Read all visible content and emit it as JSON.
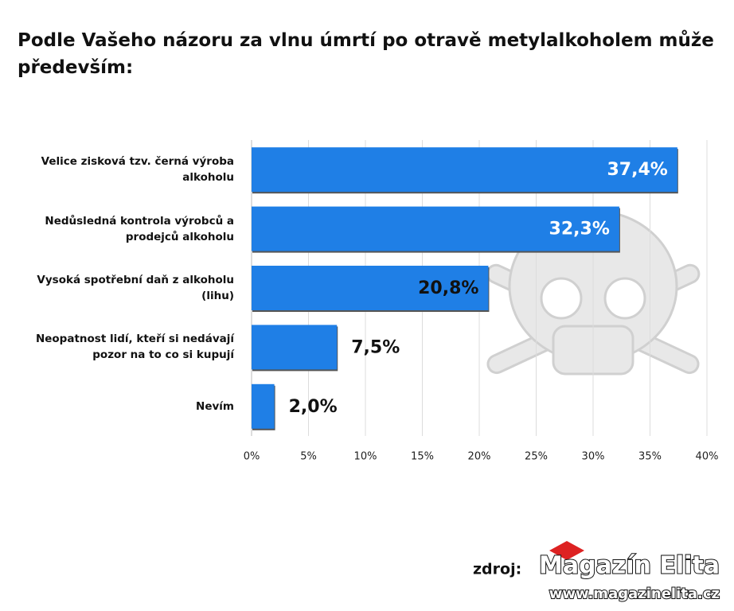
{
  "chart_data": {
    "type": "hbar",
    "title": "Podle Vašeho názoru za vlnu úmrtí po otravě metylalkoholem může především:",
    "categories": [
      "Velice zisková tzv. černá výroba alkoholu",
      "Nedůsledná kontrola výrobců a prodejců alkoholu",
      "Vysoká spotřební daň z alkoholu (lihu)",
      "Neopatnost lidí, kteří si nedávají pozor na to co si kupují",
      "Nevím"
    ],
    "values": [
      37.4,
      32.3,
      20.8,
      7.5,
      2.0
    ],
    "value_labels": [
      "37,4%",
      "32,3%",
      "20,8%",
      "7,5%",
      "2,0%"
    ],
    "color": "#1f7fe6",
    "xlim": [
      0,
      40
    ],
    "xticks": [
      {
        "value": 0,
        "label": "0%"
      },
      {
        "value": 5,
        "label": "5%"
      },
      {
        "value": 10,
        "label": "10%"
      },
      {
        "value": 15,
        "label": "15%"
      },
      {
        "value": 20,
        "label": "20%"
      },
      {
        "value": 25,
        "label": "25%"
      },
      {
        "value": 30,
        "label": "30%"
      },
      {
        "value": 35,
        "label": "35%"
      },
      {
        "value": 40,
        "label": "40%"
      }
    ],
    "grid": true,
    "source_label": "zdroj:",
    "logo": "Magazín Elita",
    "url": "www.magazinelita.cz"
  }
}
